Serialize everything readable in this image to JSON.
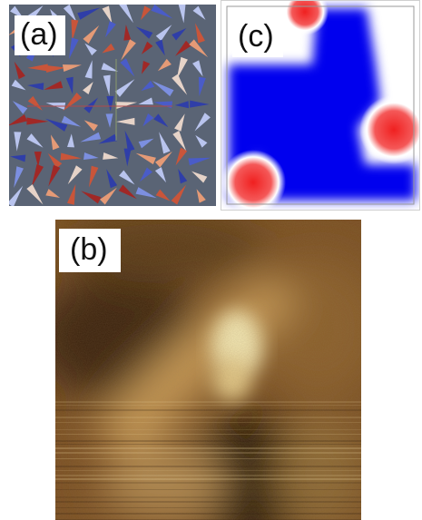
{
  "panels": {
    "a": {
      "label": "(a)",
      "background": "#5a6475"
    },
    "b": {
      "label": "(b)",
      "colormap": [
        "#2a1608",
        "#7a4f22",
        "#b88a4b",
        "#f3e7b2"
      ]
    },
    "c": {
      "label": "(c)",
      "colors": {
        "low": "#0000ee",
        "high": "#f02020",
        "mid": "#ffffff"
      }
    }
  }
}
